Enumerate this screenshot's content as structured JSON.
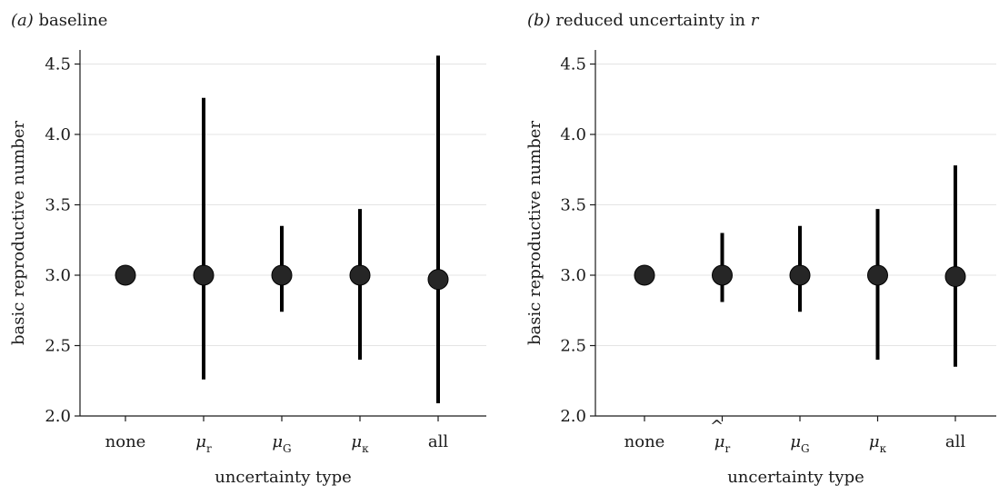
{
  "chart_data": [
    {
      "type": "scatter",
      "panel_letter": "a",
      "title": "baseline",
      "xlabel": "uncertainty type",
      "ylabel": "basic reproductive number",
      "ylim": [
        2.0,
        4.6
      ],
      "yticks": [
        "2.0",
        "2.5",
        "3.0",
        "3.5",
        "4.0",
        "4.5"
      ],
      "grid": true,
      "categories": [
        {
          "base": "none",
          "sub": "",
          "hat": false
        },
        {
          "base": "μ",
          "sub": "r",
          "hat": false
        },
        {
          "base": "μ",
          "sub": "G",
          "hat": false
        },
        {
          "base": "μ",
          "sub": "κ",
          "hat": false
        },
        {
          "base": "all",
          "sub": "",
          "hat": false
        }
      ],
      "values": [
        3.0,
        3.0,
        3.0,
        3.0,
        2.97
      ],
      "error_low": [
        3.0,
        2.26,
        2.74,
        2.4,
        2.09
      ],
      "error_high": [
        3.0,
        4.26,
        3.35,
        3.47,
        4.56
      ]
    },
    {
      "type": "scatter",
      "panel_letter": "b",
      "title_prefix": "reduced uncertainty in",
      "title_var": "r",
      "xlabel": "uncertainty type",
      "ylabel": "basic reproductive number",
      "ylim": [
        2.0,
        4.6
      ],
      "yticks": [
        "2.0",
        "2.5",
        "3.0",
        "3.5",
        "4.0",
        "4.5"
      ],
      "grid": true,
      "categories": [
        {
          "base": "none",
          "sub": "",
          "hat": false
        },
        {
          "base": "μ",
          "sub": "r",
          "hat": true
        },
        {
          "base": "μ",
          "sub": "G",
          "hat": false
        },
        {
          "base": "μ",
          "sub": "κ",
          "hat": false
        },
        {
          "base": "all",
          "sub": "",
          "hat": false
        }
      ],
      "values": [
        3.0,
        3.0,
        3.0,
        3.0,
        2.99
      ],
      "error_low": [
        3.0,
        2.81,
        2.74,
        2.4,
        2.35
      ],
      "error_high": [
        3.0,
        3.3,
        3.35,
        3.47,
        3.78
      ]
    }
  ]
}
